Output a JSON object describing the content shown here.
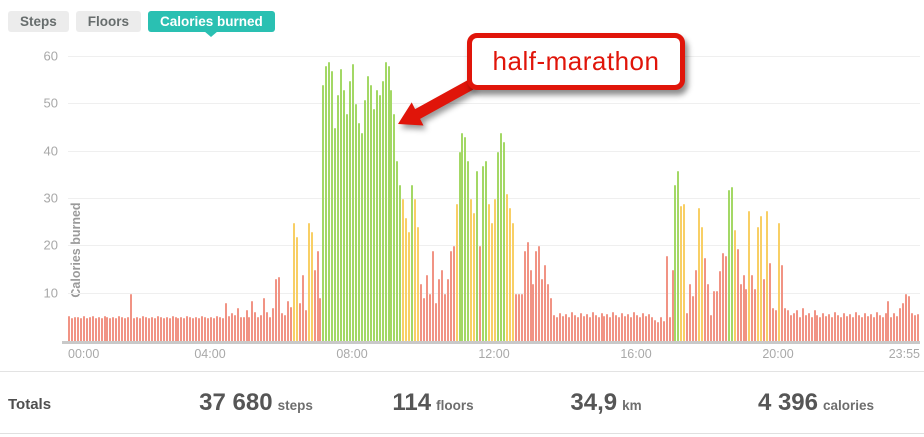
{
  "tabs": [
    {
      "label": "Steps",
      "active": false
    },
    {
      "label": "Floors",
      "active": false
    },
    {
      "label": "Calories burned",
      "active": true
    }
  ],
  "annotation": {
    "label": "half-marathon",
    "color": "#e0150a"
  },
  "totals": {
    "label": "Totals",
    "items": [
      {
        "value": "37 680",
        "unit": "steps"
      },
      {
        "value": "114",
        "unit": "floors"
      },
      {
        "value": "34,9",
        "unit": "km"
      },
      {
        "value": "4 396",
        "unit": "calories"
      }
    ]
  },
  "chart_data": {
    "type": "bar",
    "title": "",
    "xlabel": "",
    "ylabel": "Calories burned",
    "x_ticks": [
      "00:00",
      "04:00",
      "08:00",
      "12:00",
      "16:00",
      "20:00",
      "23:55"
    ],
    "x_tick_bins": [
      0,
      48,
      96,
      144,
      192,
      240,
      287
    ],
    "y_ticks": [
      10,
      20,
      30,
      40,
      50,
      60
    ],
    "ylim": [
      0,
      63
    ],
    "grid": true,
    "interval_minutes": 5,
    "colors": {
      "low": "#f19384",
      "mid": "#f8cf65",
      "high": "#a3d865"
    },
    "color_thresholds": {
      "mid_min": 21.5,
      "high_min": 32
    },
    "values": [
      5.2,
      4.8,
      5,
      5.1,
      4.9,
      5.2,
      4.8,
      5,
      5.3,
      4.9,
      5.1,
      4.8,
      5.2,
      5,
      4.9,
      5.1,
      4.8,
      5.2,
      5,
      4.9,
      5.1,
      10,
      4.9,
      5.1,
      4.8,
      5.2,
      5,
      4.9,
      5.1,
      4.8,
      5.2,
      5,
      4.9,
      5.1,
      4.8,
      5.2,
      5,
      4.9,
      5.1,
      4.8,
      5.2,
      5,
      4.9,
      5.1,
      4.8,
      5.2,
      5,
      4.9,
      5.1,
      4.8,
      5.2,
      5,
      4.9,
      8,
      5.2,
      6,
      5.5,
      7,
      5,
      5.1,
      6.5,
      5,
      8.5,
      6.2,
      5,
      5.5,
      9,
      6.2,
      5.1,
      7,
      13,
      13.5,
      6,
      5.5,
      8.5,
      7.2,
      25,
      22,
      8,
      14,
      6.5,
      25,
      23,
      15,
      19,
      9,
      54,
      58,
      59,
      57,
      45,
      52,
      57.5,
      53,
      48,
      55,
      58.5,
      50,
      46,
      44,
      51,
      56,
      54,
      49,
      53,
      52,
      55,
      59,
      58,
      53,
      48,
      38,
      33,
      30,
      26,
      23,
      33,
      30,
      24,
      12,
      9,
      14,
      10,
      19,
      8,
      13,
      15,
      10,
      13,
      19,
      20,
      29,
      40,
      44,
      43,
      38,
      30,
      27,
      36,
      20,
      37,
      38,
      29,
      25,
      30,
      40,
      44,
      42,
      31,
      28,
      25,
      10,
      10,
      10,
      19,
      21,
      15,
      12,
      19,
      20,
      13,
      16,
      12,
      9,
      5.5,
      5,
      6,
      5.2,
      5.8,
      5,
      6.2,
      5.5,
      5,
      6,
      5.2,
      5.8,
      5,
      6.2,
      5.5,
      5,
      6,
      5.2,
      5.8,
      5,
      6.2,
      5.5,
      5,
      6,
      5.2,
      5.8,
      5,
      6.2,
      5.5,
      5,
      6,
      5.2,
      5.8,
      5,
      4.5,
      4,
      5,
      4.2,
      18,
      5,
      15,
      33,
      36,
      28.5,
      29,
      6,
      12,
      9.5,
      15,
      28,
      24,
      17.5,
      12,
      5.5,
      10.5,
      10.5,
      14.8,
      18.5,
      18,
      32,
      32.5,
      23.5,
      19.5,
      12,
      14,
      11,
      27.5,
      14,
      11,
      24,
      26.5,
      13,
      27.5,
      16.5,
      7,
      6.5,
      25,
      16,
      7,
      6.5,
      5.5,
      6,
      6.5,
      5,
      7,
      5.5,
      6,
      5,
      6.5,
      5.5,
      5,
      6,
      5.2,
      5.8,
      5,
      6.2,
      5.5,
      5,
      6,
      5.2,
      5.8,
      5,
      6.2,
      5.5,
      5,
      6,
      5.2,
      5.8,
      5,
      6.2,
      5.5,
      5,
      6,
      8.5,
      5,
      6,
      5.2,
      7,
      8,
      10,
      9.5,
      6,
      5.5,
      5.8
    ]
  }
}
